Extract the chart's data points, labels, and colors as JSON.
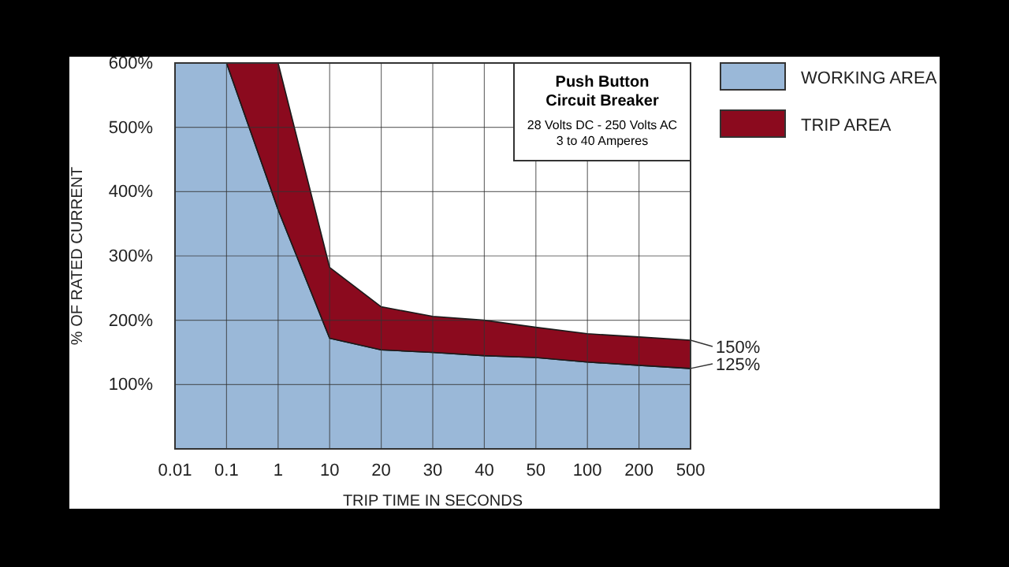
{
  "chart_data": {
    "type": "area",
    "stacked": true,
    "title": "Push Button Circuit Breaker",
    "subtitle": "28 Volts DC - 250 Volts AC",
    "annotations": [
      "3 to 40 Amperes",
      {
        "text": "150%",
        "x": "500",
        "y": 169
      },
      {
        "text": "125%",
        "x": "500",
        "y": 125
      }
    ],
    "xlabel": "TRIP TIME IN SECONDS",
    "ylabel": "% OF RATED CURRENT",
    "grid": true,
    "legend": "top right",
    "categories": [
      "0.01",
      "0.1",
      "1",
      "10",
      "20",
      "30",
      "40",
      "50",
      "100",
      "200",
      "500"
    ],
    "series": [
      {
        "name": "WORKING AREA",
        "color": "#9ab8d8",
        "values": [
          600,
          600,
          372,
          172,
          154,
          150,
          145,
          142,
          135,
          130,
          125
        ]
      },
      {
        "name": "TRIP AREA",
        "color": "#8b0a1e",
        "values": [
          0,
          0,
          228,
          110,
          67,
          56,
          55,
          47,
          44,
          44,
          44
        ]
      }
    ],
    "ylim": [
      0,
      600
    ],
    "yticks": [
      {
        "value": 100,
        "label": "100%"
      },
      {
        "value": 200,
        "label": "200%"
      },
      {
        "value": 300,
        "label": "300%"
      },
      {
        "value": 400,
        "label": "400%"
      },
      {
        "value": 500,
        "label": "500%"
      },
      {
        "value": 600,
        "label": "600%"
      }
    ]
  }
}
